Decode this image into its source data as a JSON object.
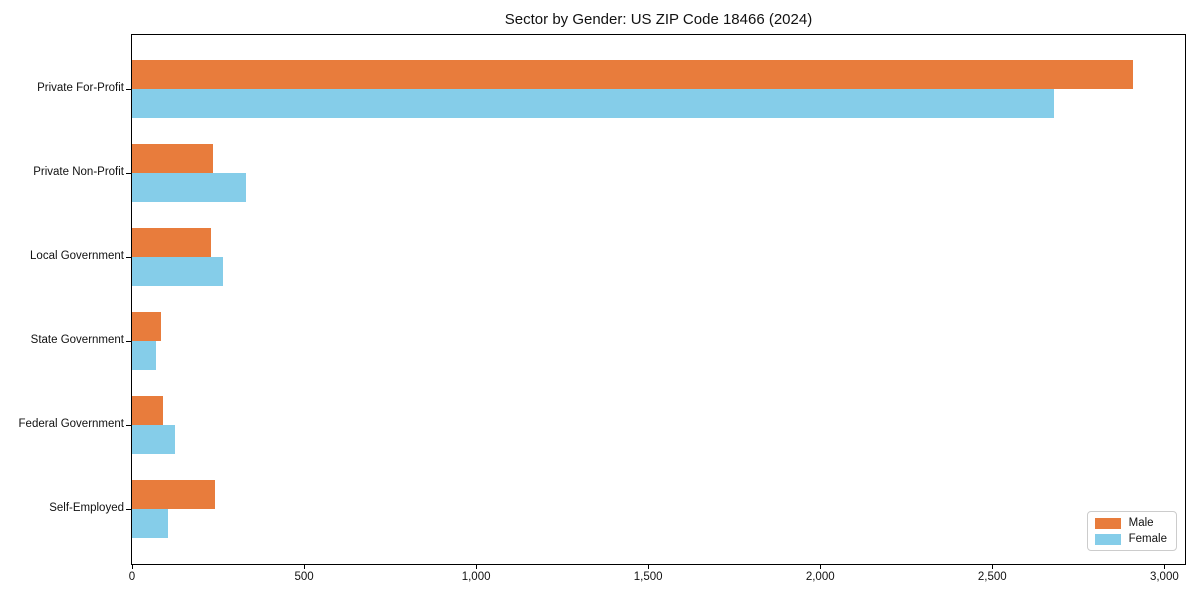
{
  "title": "Sector by Gender: US ZIP Code 18466 (2024)",
  "colors": {
    "male": "#e87c3c",
    "female": "#85cde9",
    "axis": "#000000",
    "legend_border": "#cccccc",
    "background": "#ffffff"
  },
  "legend": {
    "position": "lower right",
    "entries": [
      {
        "label": "Male",
        "color": "#e87c3c"
      },
      {
        "label": "Female",
        "color": "#85cde9"
      }
    ]
  },
  "chart_data": {
    "type": "bar",
    "orientation": "horizontal",
    "title": "Sector by Gender: US ZIP Code 18466 (2024)",
    "categories": [
      "Private For-Profit",
      "Private Non-Profit",
      "Local Government",
      "State Government",
      "Federal Government",
      "Self-Employed"
    ],
    "series": [
      {
        "name": "Male",
        "color": "#e87c3c",
        "values": [
          2910,
          235,
          230,
          85,
          90,
          240
        ]
      },
      {
        "name": "Female",
        "color": "#85cde9",
        "values": [
          2680,
          330,
          265,
          70,
          125,
          105
        ]
      }
    ],
    "xlabel": "",
    "ylabel": "",
    "xlim": [
      0,
      3060
    ],
    "xticks": [
      0,
      500,
      1000,
      1500,
      2000,
      2500,
      3000
    ],
    "xtick_labels": [
      "0",
      "500",
      "1,000",
      "1,500",
      "2,000",
      "2,500",
      "3,000"
    ],
    "grid": false,
    "legend_position": "lower right"
  }
}
